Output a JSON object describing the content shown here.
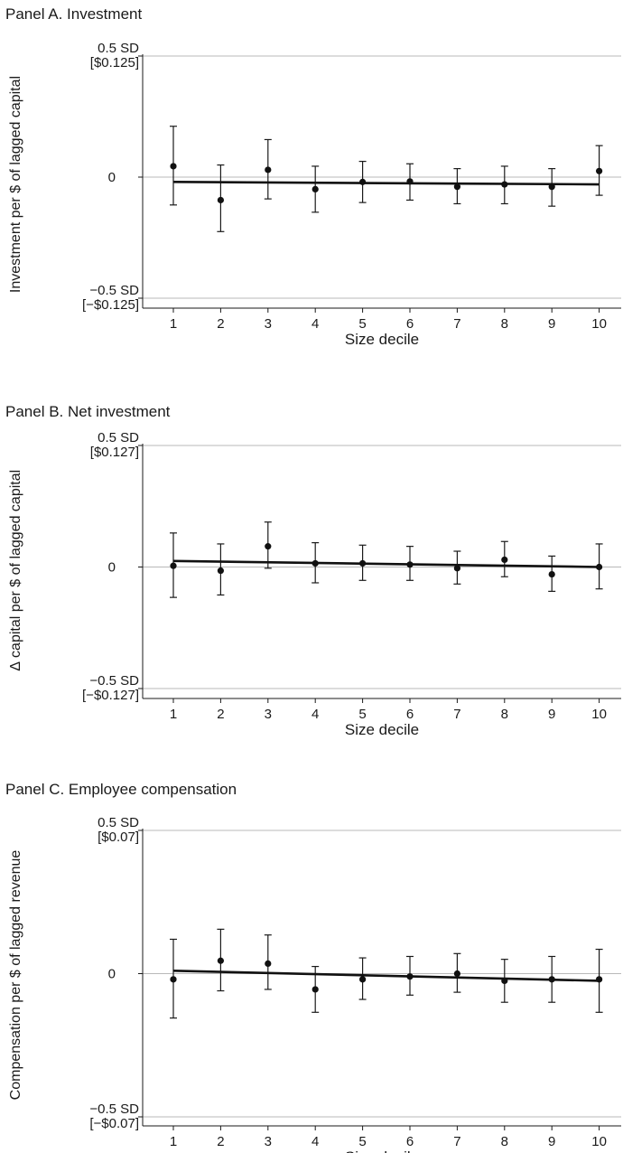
{
  "chart_data": [
    {
      "type": "scatter",
      "title": "Panel A. Investment",
      "ylabel": "Investment per $ of lagged capital",
      "xlabel": "Size decile",
      "x": [
        1,
        2,
        3,
        4,
        5,
        6,
        7,
        8,
        9,
        10
      ],
      "values": [
        0.045,
        -0.095,
        0.03,
        -0.05,
        -0.02,
        -0.018,
        -0.04,
        -0.03,
        -0.04,
        0.025
      ],
      "ci_upper": [
        0.21,
        0.05,
        0.155,
        0.045,
        0.065,
        0.055,
        0.035,
        0.045,
        0.035,
        0.13
      ],
      "ci_lower": [
        -0.115,
        -0.225,
        -0.09,
        -0.145,
        -0.105,
        -0.095,
        -0.11,
        -0.11,
        -0.12,
        -0.075
      ],
      "fit_line": [
        [
          1,
          -0.02
        ],
        [
          10,
          -0.03
        ]
      ],
      "ylim": [
        -0.5,
        0.5
      ],
      "xlim": [
        0.5,
        10.5
      ],
      "xticks": [
        "1",
        "2",
        "3",
        "4",
        "5",
        "6",
        "7",
        "8",
        "9",
        "10"
      ],
      "yticks": [
        {
          "value": 0.5,
          "label": "0.5 SD",
          "sublabel": "[$0.125]"
        },
        {
          "value": 0,
          "label": "0",
          "sublabel": ""
        },
        {
          "value": -0.5,
          "label": "−0.5 SD",
          "sublabel": "[−$0.125]"
        }
      ],
      "grid": true,
      "legend": "none"
    },
    {
      "type": "scatter",
      "title": "Panel B. Net investment",
      "ylabel": "∆ capital per $ of lagged capital",
      "xlabel": "Size decile",
      "x": [
        1,
        2,
        3,
        4,
        5,
        6,
        7,
        8,
        9,
        10
      ],
      "values": [
        0.005,
        -0.015,
        0.085,
        0.015,
        0.015,
        0.01,
        -0.005,
        0.03,
        -0.03,
        0.0
      ],
      "ci_upper": [
        0.14,
        0.095,
        0.185,
        0.1,
        0.09,
        0.085,
        0.065,
        0.105,
        0.045,
        0.095
      ],
      "ci_lower": [
        -0.125,
        -0.115,
        -0.005,
        -0.065,
        -0.055,
        -0.055,
        -0.07,
        -0.04,
        -0.1,
        -0.09
      ],
      "fit_line": [
        [
          1,
          0.025
        ],
        [
          10,
          0.0
        ]
      ],
      "ylim": [
        -0.5,
        0.5
      ],
      "xlim": [
        0.5,
        10.5
      ],
      "xticks": [
        "1",
        "2",
        "3",
        "4",
        "5",
        "6",
        "7",
        "8",
        "9",
        "10"
      ],
      "yticks": [
        {
          "value": 0.5,
          "label": "0.5 SD",
          "sublabel": "[$0.127]"
        },
        {
          "value": 0,
          "label": "0",
          "sublabel": ""
        },
        {
          "value": -0.5,
          "label": "−0.5 SD",
          "sublabel": "[−$0.127]"
        }
      ],
      "grid": true,
      "legend": "none"
    },
    {
      "type": "scatter",
      "title": "Panel C. Employee compensation",
      "ylabel": "Compensation per $ of lagged revenue",
      "xlabel": "Size decile",
      "x": [
        1,
        2,
        3,
        4,
        5,
        6,
        7,
        8,
        9,
        10
      ],
      "values": [
        -0.02,
        0.045,
        0.035,
        -0.055,
        -0.02,
        -0.01,
        0.0,
        -0.025,
        -0.02,
        -0.02
      ],
      "ci_upper": [
        0.12,
        0.155,
        0.135,
        0.025,
        0.055,
        0.06,
        0.07,
        0.05,
        0.06,
        0.085
      ],
      "ci_lower": [
        -0.155,
        -0.06,
        -0.055,
        -0.135,
        -0.09,
        -0.075,
        -0.065,
        -0.1,
        -0.1,
        -0.135
      ],
      "fit_line": [
        [
          1,
          0.01
        ],
        [
          10,
          -0.025
        ]
      ],
      "ylim": [
        -0.5,
        0.5
      ],
      "xlim": [
        0.5,
        10.5
      ],
      "xticks": [
        "1",
        "2",
        "3",
        "4",
        "5",
        "6",
        "7",
        "8",
        "9",
        "10"
      ],
      "yticks": [
        {
          "value": 0.5,
          "label": "0.5 SD",
          "sublabel": "[$0.07]"
        },
        {
          "value": 0,
          "label": "0",
          "sublabel": ""
        },
        {
          "value": -0.5,
          "label": "−0.5 SD",
          "sublabel": "[−$0.07]"
        }
      ],
      "grid": true,
      "legend": "none"
    }
  ]
}
